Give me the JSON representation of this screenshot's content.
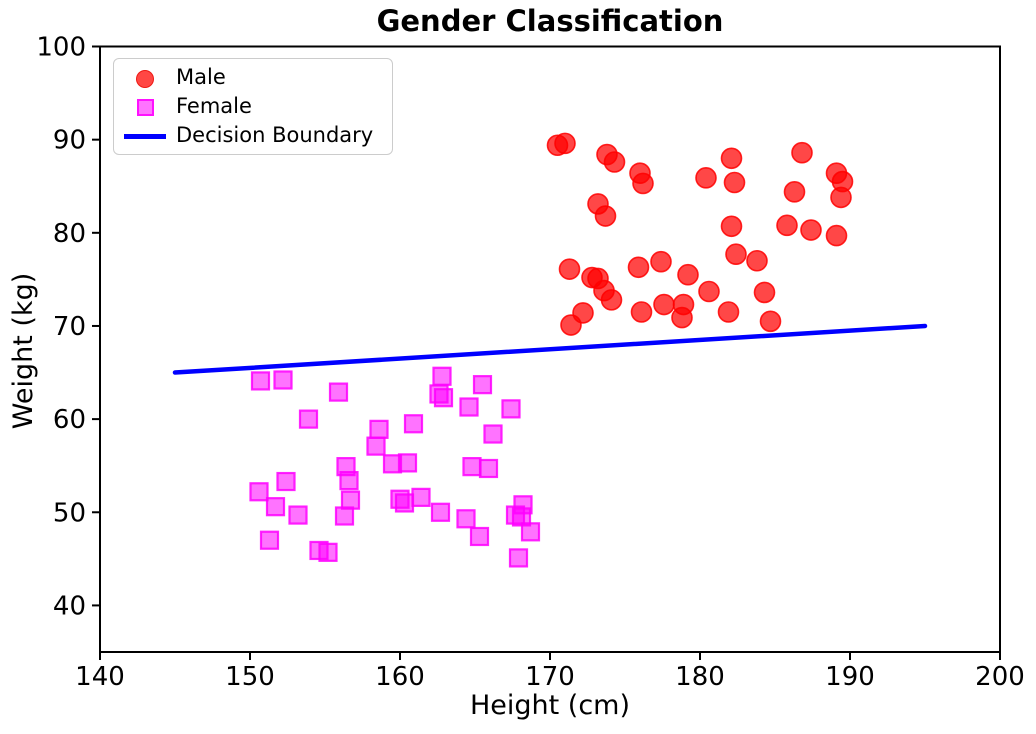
{
  "chart_data": {
    "type": "scatter",
    "title": "Gender Classification",
    "xlabel": "Height (cm)",
    "ylabel": "Weight (kg)",
    "xlim": [
      140,
      200
    ],
    "ylim": [
      35,
      100
    ],
    "x_ticks": [
      140,
      150,
      160,
      170,
      180,
      190,
      200
    ],
    "y_ticks": [
      40,
      50,
      60,
      70,
      80,
      90,
      100
    ],
    "grid": false,
    "legend": {
      "position": "upper-left",
      "entries": [
        "Male",
        "Female",
        "Decision Boundary"
      ]
    },
    "colors": {
      "male": "#ff0000",
      "female": "#ff00ff",
      "boundary": "#0000ff",
      "spine": "#000000"
    },
    "series": [
      {
        "name": "Male",
        "marker": "circle",
        "color": "#ff0000",
        "opacity": 0.72,
        "points": [
          [
            170.5,
            89.4
          ],
          [
            171.0,
            89.6
          ],
          [
            173.8,
            88.4
          ],
          [
            174.3,
            87.6
          ],
          [
            176.0,
            86.4
          ],
          [
            176.2,
            85.3
          ],
          [
            180.4,
            85.9
          ],
          [
            182.1,
            88.0
          ],
          [
            182.3,
            85.4
          ],
          [
            186.8,
            88.6
          ],
          [
            189.1,
            86.4
          ],
          [
            189.5,
            85.5
          ],
          [
            189.4,
            83.8
          ],
          [
            186.3,
            84.4
          ],
          [
            173.2,
            83.1
          ],
          [
            173.7,
            81.8
          ],
          [
            182.1,
            80.7
          ],
          [
            185.8,
            80.8
          ],
          [
            187.4,
            80.3
          ],
          [
            189.1,
            79.7
          ],
          [
            182.4,
            77.7
          ],
          [
            183.8,
            77.0
          ],
          [
            171.3,
            76.1
          ],
          [
            175.9,
            76.3
          ],
          [
            177.4,
            76.9
          ],
          [
            172.8,
            75.2
          ],
          [
            173.2,
            75.1
          ],
          [
            179.2,
            75.5
          ],
          [
            180.6,
            73.7
          ],
          [
            173.6,
            73.8
          ],
          [
            174.1,
            72.8
          ],
          [
            184.3,
            73.6
          ],
          [
            176.1,
            71.5
          ],
          [
            177.6,
            72.3
          ],
          [
            178.9,
            72.3
          ],
          [
            178.8,
            70.9
          ],
          [
            172.2,
            71.4
          ],
          [
            171.4,
            70.1
          ],
          [
            181.9,
            71.5
          ],
          [
            184.7,
            70.5
          ]
        ]
      },
      {
        "name": "Female",
        "marker": "square",
        "color": "#ff00ff",
        "opacity": 0.55,
        "points": [
          [
            150.7,
            64.1
          ],
          [
            152.2,
            64.2
          ],
          [
            155.9,
            62.9
          ],
          [
            153.9,
            60.0
          ],
          [
            158.6,
            58.9
          ],
          [
            158.4,
            57.1
          ],
          [
            159.5,
            55.2
          ],
          [
            156.4,
            54.9
          ],
          [
            156.6,
            53.4
          ],
          [
            152.4,
            53.3
          ],
          [
            150.6,
            52.2
          ],
          [
            156.7,
            51.3
          ],
          [
            151.7,
            50.6
          ],
          [
            153.2,
            49.7
          ],
          [
            156.3,
            49.6
          ],
          [
            151.3,
            47.0
          ],
          [
            154.6,
            45.9
          ],
          [
            155.2,
            45.7
          ],
          [
            162.8,
            64.6
          ],
          [
            165.5,
            63.7
          ],
          [
            162.6,
            62.7
          ],
          [
            162.9,
            62.3
          ],
          [
            164.6,
            61.3
          ],
          [
            167.4,
            61.1
          ],
          [
            160.9,
            59.5
          ],
          [
            166.2,
            58.4
          ],
          [
            160.5,
            55.3
          ],
          [
            164.8,
            54.9
          ],
          [
            165.9,
            54.7
          ],
          [
            160.0,
            51.4
          ],
          [
            160.3,
            51.0
          ],
          [
            161.4,
            51.6
          ],
          [
            162.7,
            50.0
          ],
          [
            164.4,
            49.3
          ],
          [
            165.3,
            47.4
          ],
          [
            168.2,
            50.8
          ],
          [
            167.7,
            49.7
          ],
          [
            168.1,
            49.5
          ],
          [
            168.7,
            47.9
          ],
          [
            167.9,
            45.1
          ]
        ]
      }
    ],
    "boundary_line": {
      "name": "Decision Boundary",
      "color": "#0000ff",
      "points": [
        [
          145,
          65
        ],
        [
          195,
          70
        ]
      ]
    }
  }
}
